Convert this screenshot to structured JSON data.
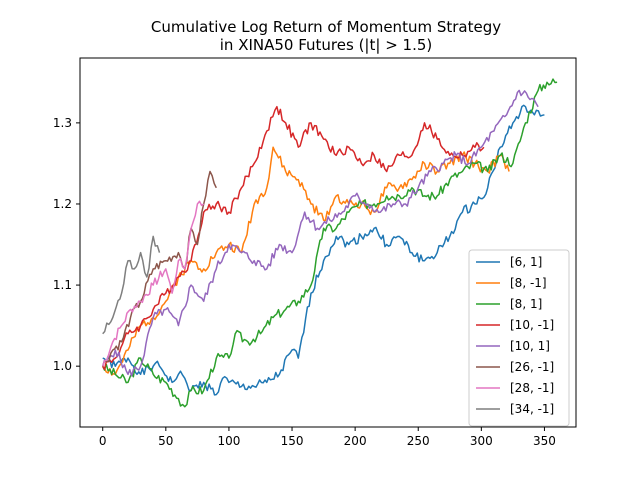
{
  "chart_data": {
    "type": "line",
    "title_lines": [
      "Cumulative Log Return of Momentum Strategy",
      "in XINA50 Futures (|t| > 1.5)"
    ],
    "xlabel": "",
    "ylabel": "",
    "xlim": [
      -18,
      375
    ],
    "ylim": [
      0.925,
      1.38
    ],
    "xticks": [
      0,
      50,
      100,
      150,
      200,
      250,
      300,
      350
    ],
    "yticks": [
      1.0,
      1.1,
      1.2,
      1.3
    ],
    "ytick_labels": [
      "1.0",
      "1.1",
      "1.2",
      "1.3"
    ],
    "grid": false,
    "legend_position": "lower-right",
    "series": [
      {
        "name": "[6, 1]",
        "color": "#1f77b4",
        "points": [
          [
            0,
            1.01
          ],
          [
            10,
            1.0
          ],
          [
            20,
            1.01
          ],
          [
            30,
            0.99
          ],
          [
            40,
            1.0
          ],
          [
            45,
            1.0
          ],
          [
            55,
            0.98
          ],
          [
            60,
            0.99
          ],
          [
            65,
            0.985
          ],
          [
            70,
            0.97
          ],
          [
            80,
            0.98
          ],
          [
            90,
            0.965
          ],
          [
            95,
            0.985
          ],
          [
            100,
            0.98
          ],
          [
            110,
            0.975
          ],
          [
            120,
            0.975
          ],
          [
            130,
            0.98
          ],
          [
            140,
            0.99
          ],
          [
            150,
            1.02
          ],
          [
            155,
            1.01
          ],
          [
            165,
            1.09
          ],
          [
            175,
            1.13
          ],
          [
            185,
            1.16
          ],
          [
            195,
            1.15
          ],
          [
            205,
            1.16
          ],
          [
            215,
            1.17
          ],
          [
            225,
            1.15
          ],
          [
            235,
            1.16
          ],
          [
            245,
            1.14
          ],
          [
            255,
            1.13
          ],
          [
            265,
            1.14
          ],
          [
            275,
            1.16
          ],
          [
            285,
            1.19
          ],
          [
            295,
            1.2
          ],
          [
            305,
            1.22
          ],
          [
            315,
            1.27
          ],
          [
            325,
            1.3
          ],
          [
            335,
            1.32
          ],
          [
            342,
            1.31
          ],
          [
            350,
            1.31
          ]
        ]
      },
      {
        "name": "[8, -1]",
        "color": "#ff7f0e",
        "points": [
          [
            0,
            1.0
          ],
          [
            10,
            0.99
          ],
          [
            20,
            1.02
          ],
          [
            30,
            1.05
          ],
          [
            40,
            1.06
          ],
          [
            50,
            1.08
          ],
          [
            60,
            1.11
          ],
          [
            70,
            1.13
          ],
          [
            80,
            1.12
          ],
          [
            90,
            1.14
          ],
          [
            100,
            1.15
          ],
          [
            110,
            1.14
          ],
          [
            120,
            1.2
          ],
          [
            130,
            1.22
          ],
          [
            135,
            1.27
          ],
          [
            145,
            1.24
          ],
          [
            155,
            1.23
          ],
          [
            165,
            1.2
          ],
          [
            175,
            1.18
          ],
          [
            185,
            1.21
          ],
          [
            195,
            1.2
          ],
          [
            205,
            1.2
          ],
          [
            215,
            1.19
          ],
          [
            225,
            1.22
          ],
          [
            235,
            1.22
          ],
          [
            245,
            1.23
          ],
          [
            255,
            1.25
          ],
          [
            265,
            1.24
          ],
          [
            275,
            1.25
          ],
          [
            285,
            1.26
          ],
          [
            295,
            1.25
          ],
          [
            305,
            1.24
          ],
          [
            315,
            1.26
          ],
          [
            322,
            1.24
          ]
        ]
      },
      {
        "name": "[8, 1]",
        "color": "#2ca02c",
        "points": [
          [
            0,
            1.0
          ],
          [
            10,
            0.99
          ],
          [
            20,
            0.98
          ],
          [
            30,
            1.01
          ],
          [
            40,
            0.99
          ],
          [
            50,
            0.98
          ],
          [
            60,
            0.96
          ],
          [
            65,
            0.95
          ],
          [
            70,
            0.97
          ],
          [
            80,
            0.97
          ],
          [
            90,
            1.01
          ],
          [
            100,
            1.01
          ],
          [
            105,
            1.04
          ],
          [
            115,
            1.03
          ],
          [
            125,
            1.04
          ],
          [
            135,
            1.06
          ],
          [
            145,
            1.07
          ],
          [
            155,
            1.08
          ],
          [
            165,
            1.1
          ],
          [
            175,
            1.17
          ],
          [
            185,
            1.17
          ],
          [
            195,
            1.19
          ],
          [
            205,
            1.2
          ],
          [
            215,
            1.2
          ],
          [
            225,
            1.21
          ],
          [
            235,
            1.21
          ],
          [
            245,
            1.22
          ],
          [
            255,
            1.21
          ],
          [
            265,
            1.21
          ],
          [
            275,
            1.23
          ],
          [
            285,
            1.24
          ],
          [
            295,
            1.25
          ],
          [
            305,
            1.24
          ],
          [
            315,
            1.26
          ],
          [
            325,
            1.25
          ],
          [
            335,
            1.3
          ],
          [
            345,
            1.34
          ],
          [
            352,
            1.35
          ],
          [
            360,
            1.35
          ]
        ]
      },
      {
        "name": "[10, -1]",
        "color": "#d62728",
        "points": [
          [
            0,
            1.0
          ],
          [
            10,
            1.01
          ],
          [
            20,
            1.04
          ],
          [
            30,
            1.05
          ],
          [
            40,
            1.07
          ],
          [
            50,
            1.09
          ],
          [
            60,
            1.11
          ],
          [
            70,
            1.13
          ],
          [
            80,
            1.19
          ],
          [
            90,
            1.2
          ],
          [
            100,
            1.19
          ],
          [
            110,
            1.22
          ],
          [
            120,
            1.25
          ],
          [
            130,
            1.29
          ],
          [
            138,
            1.32
          ],
          [
            145,
            1.3
          ],
          [
            155,
            1.27
          ],
          [
            165,
            1.3
          ],
          [
            175,
            1.28
          ],
          [
            185,
            1.26
          ],
          [
            195,
            1.27
          ],
          [
            205,
            1.25
          ],
          [
            215,
            1.26
          ],
          [
            225,
            1.24
          ],
          [
            235,
            1.26
          ],
          [
            245,
            1.26
          ],
          [
            255,
            1.3
          ],
          [
            265,
            1.28
          ],
          [
            275,
            1.26
          ],
          [
            285,
            1.26
          ],
          [
            295,
            1.27
          ],
          [
            302,
            1.27
          ]
        ]
      },
      {
        "name": "[10, 1]",
        "color": "#9467bd",
        "points": [
          [
            0,
            1.0
          ],
          [
            10,
            1.02
          ],
          [
            20,
            0.99
          ],
          [
            30,
            1.0
          ],
          [
            40,
            1.06
          ],
          [
            50,
            1.07
          ],
          [
            60,
            1.05
          ],
          [
            70,
            1.1
          ],
          [
            80,
            1.08
          ],
          [
            90,
            1.12
          ],
          [
            100,
            1.15
          ],
          [
            110,
            1.14
          ],
          [
            120,
            1.13
          ],
          [
            130,
            1.12
          ],
          [
            140,
            1.15
          ],
          [
            150,
            1.14
          ],
          [
            160,
            1.19
          ],
          [
            170,
            1.17
          ],
          [
            180,
            1.18
          ],
          [
            190,
            1.19
          ],
          [
            200,
            1.21
          ],
          [
            210,
            1.2
          ],
          [
            220,
            1.19
          ],
          [
            230,
            1.2
          ],
          [
            240,
            1.2
          ],
          [
            250,
            1.22
          ],
          [
            260,
            1.24
          ],
          [
            270,
            1.25
          ],
          [
            280,
            1.26
          ],
          [
            290,
            1.25
          ],
          [
            300,
            1.27
          ],
          [
            310,
            1.29
          ],
          [
            320,
            1.31
          ],
          [
            330,
            1.34
          ],
          [
            340,
            1.33
          ],
          [
            345,
            1.32
          ]
        ]
      },
      {
        "name": "[26, -1]",
        "color": "#8c564b",
        "points": [
          [
            0,
            1.0
          ],
          [
            8,
            1.02
          ],
          [
            15,
            1.03
          ],
          [
            22,
            1.06
          ],
          [
            30,
            1.08
          ],
          [
            40,
            1.12
          ],
          [
            50,
            1.13
          ],
          [
            60,
            1.14
          ],
          [
            65,
            1.12
          ],
          [
            70,
            1.17
          ],
          [
            75,
            1.15
          ],
          [
            80,
            1.2
          ],
          [
            85,
            1.24
          ],
          [
            90,
            1.22
          ]
        ]
      },
      {
        "name": "[28, -1]",
        "color": "#e377c2",
        "points": [
          [
            0,
            1.0
          ],
          [
            8,
            1.03
          ],
          [
            15,
            1.05
          ],
          [
            22,
            1.07
          ],
          [
            30,
            1.08
          ],
          [
            40,
            1.1
          ],
          [
            50,
            1.12
          ],
          [
            55,
            1.09
          ],
          [
            60,
            1.13
          ],
          [
            65,
            1.12
          ],
          [
            70,
            1.17
          ],
          [
            75,
            1.2
          ],
          [
            80,
            1.2
          ]
        ]
      },
      {
        "name": "[34, -1]",
        "color": "#7f7f7f",
        "points": [
          [
            0,
            1.04
          ],
          [
            8,
            1.06
          ],
          [
            15,
            1.09
          ],
          [
            20,
            1.13
          ],
          [
            25,
            1.12
          ],
          [
            30,
            1.14
          ],
          [
            35,
            1.11
          ],
          [
            40,
            1.16
          ],
          [
            45,
            1.14
          ]
        ]
      }
    ]
  }
}
